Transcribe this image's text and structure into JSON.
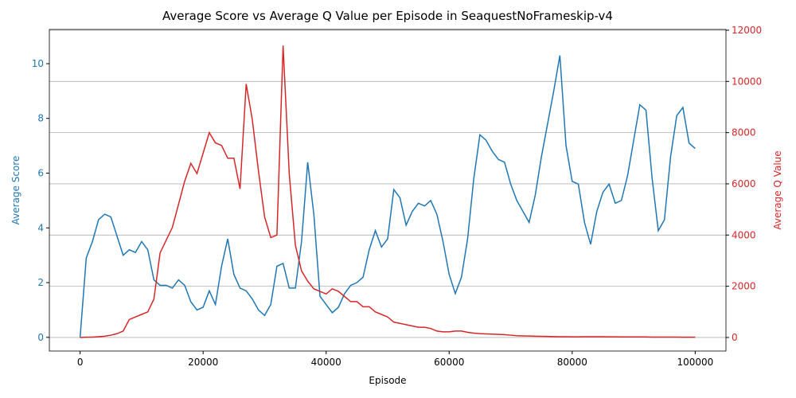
{
  "chart_data": {
    "type": "line",
    "title": "Average Score vs Average Q Value per Episode in SeaquestNoFrameskip-v4",
    "xlabel": "Episode",
    "ylabel": "Average Score",
    "y2label": "Average Q Value",
    "x": [
      0,
      1000,
      2000,
      3000,
      4000,
      5000,
      6000,
      7000,
      8000,
      9000,
      10000,
      11000,
      12000,
      13000,
      14000,
      15000,
      16000,
      17000,
      18000,
      19000,
      20000,
      21000,
      22000,
      23000,
      24000,
      25000,
      26000,
      27000,
      28000,
      29000,
      30000,
      31000,
      32000,
      33000,
      34000,
      35000,
      36000,
      37000,
      38000,
      39000,
      40000,
      41000,
      42000,
      43000,
      44000,
      45000,
      46000,
      47000,
      48000,
      49000,
      50000,
      51000,
      52000,
      53000,
      54000,
      55000,
      56000,
      57000,
      58000,
      59000,
      60000,
      61000,
      62000,
      63000,
      64000,
      65000,
      66000,
      67000,
      68000,
      69000,
      70000,
      71000,
      72000,
      73000,
      74000,
      75000,
      76000,
      77000,
      78000,
      79000,
      80000,
      81000,
      82000,
      83000,
      84000,
      85000,
      86000,
      87000,
      88000,
      89000,
      90000,
      91000,
      92000,
      93000,
      94000,
      95000,
      96000,
      97000,
      98000,
      99000,
      100000
    ],
    "xlim": [
      -5000,
      105000
    ],
    "xticks": [
      0,
      20000,
      40000,
      60000,
      80000,
      100000
    ],
    "ylim": [
      -0.5,
      11.25
    ],
    "yticks": [
      0,
      2,
      4,
      6,
      8,
      10
    ],
    "y2lim": [
      -530,
      12030
    ],
    "y2ticks": [
      0,
      2000,
      4000,
      6000,
      8000,
      10000,
      12000
    ],
    "grid": "y2",
    "series": [
      {
        "name": "Average Score",
        "color": "#1f77b4",
        "axis": "y",
        "values": [
          0,
          2.9,
          3.5,
          4.3,
          4.5,
          4.4,
          3.7,
          3.0,
          3.2,
          3.1,
          3.5,
          3.2,
          2.1,
          1.9,
          1.9,
          1.8,
          2.1,
          1.9,
          1.3,
          1.0,
          1.1,
          1.7,
          1.2,
          2.6,
          3.6,
          2.3,
          1.8,
          1.7,
          1.4,
          1.0,
          0.8,
          1.2,
          2.6,
          2.7,
          1.8,
          1.8,
          3.5,
          6.4,
          4.5,
          1.5,
          1.2,
          0.9,
          1.1,
          1.6,
          1.9,
          2.0,
          2.2,
          3.2,
          3.9,
          3.3,
          3.6,
          5.4,
          5.1,
          4.1,
          4.6,
          4.9,
          4.8,
          5.0,
          4.5,
          3.5,
          2.3,
          1.6,
          2.2,
          3.6,
          5.8,
          7.4,
          7.2,
          6.8,
          6.5,
          6.4,
          5.6,
          5.0,
          4.6,
          4.2,
          5.2,
          6.6,
          7.8,
          9.0,
          10.3,
          7.0,
          5.7,
          5.6,
          4.2,
          3.4,
          4.6,
          5.3,
          5.6,
          4.9,
          5.0,
          5.9,
          7.2,
          8.5,
          8.3,
          5.8,
          3.9,
          4.3,
          6.6,
          8.1,
          8.4,
          7.1,
          6.9
        ]
      },
      {
        "name": "Average Q Value",
        "color": "#d62728",
        "axis": "y2",
        "values": [
          0,
          10,
          15,
          30,
          50,
          90,
          150,
          250,
          700,
          800,
          900,
          1000,
          1500,
          3300,
          3800,
          4300,
          5200,
          6100,
          6800,
          6400,
          7200,
          8000,
          7600,
          7500,
          7000,
          7000,
          5800,
          9900,
          8500,
          6500,
          4700,
          3900,
          4000,
          11400,
          6400,
          3600,
          2600,
          2200,
          1900,
          1800,
          1700,
          1900,
          1800,
          1600,
          1400,
          1400,
          1200,
          1200,
          1000,
          900,
          800,
          600,
          550,
          500,
          450,
          400,
          400,
          350,
          250,
          220,
          220,
          250,
          250,
          200,
          170,
          150,
          140,
          130,
          120,
          110,
          90,
          70,
          60,
          55,
          50,
          45,
          40,
          35,
          30,
          30,
          25,
          25,
          30,
          30,
          30,
          30,
          25,
          25,
          20,
          20,
          20,
          20,
          20,
          15,
          15,
          15,
          15,
          15,
          12,
          12,
          10
        ]
      }
    ]
  }
}
